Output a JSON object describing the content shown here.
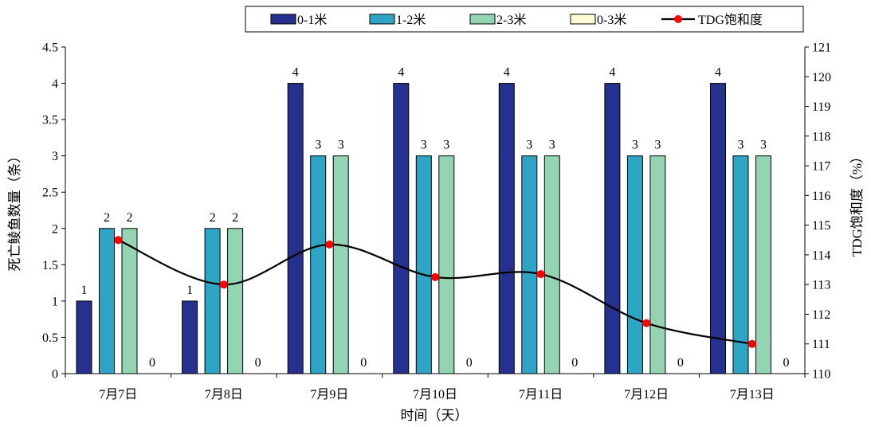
{
  "chart_data": {
    "type": "bar",
    "categories": [
      "7月7日",
      "7月8日",
      "7月9日",
      "7月10日",
      "7月11日",
      "7月12日",
      "7月13日"
    ],
    "series": [
      {
        "name": "0-1米",
        "color": "#25318c",
        "values": [
          1,
          1,
          4,
          4,
          4,
          4,
          4
        ]
      },
      {
        "name": "1-2米",
        "color": "#2ea5c4",
        "values": [
          2,
          2,
          3,
          3,
          3,
          3,
          3
        ]
      },
      {
        "name": "2-3米",
        "color": "#93d5b3",
        "values": [
          2,
          2,
          3,
          3,
          3,
          3,
          3
        ]
      },
      {
        "name": "0-3米",
        "color": "#fdfbd2",
        "values": [
          0,
          0,
          0,
          0,
          0,
          0,
          0
        ]
      }
    ],
    "line_series": {
      "name": "TDG饱和度",
      "color": "#000000",
      "marker_color": "#ff0000",
      "axis": "right",
      "values": [
        114.5,
        113.0,
        114.35,
        113.25,
        113.35,
        111.7,
        111.0
      ]
    },
    "xlabel": "时间（天）",
    "ylabel": "死亡鲮鱼数量（条）",
    "ylabel_right": "TDG饱和度（%）",
    "ylim": [
      0,
      4.5
    ],
    "yticks": [
      "0",
      "0.5",
      "1",
      "1.5",
      "2",
      "2.5",
      "3",
      "3.5",
      "4",
      "4.5"
    ],
    "ylim_right": [
      110,
      121
    ],
    "yticks_right": [
      "110",
      "111",
      "112",
      "113",
      "114",
      "115",
      "116",
      "117",
      "118",
      "119",
      "120",
      "121"
    ],
    "legend_position": "top-right",
    "grid": false
  }
}
